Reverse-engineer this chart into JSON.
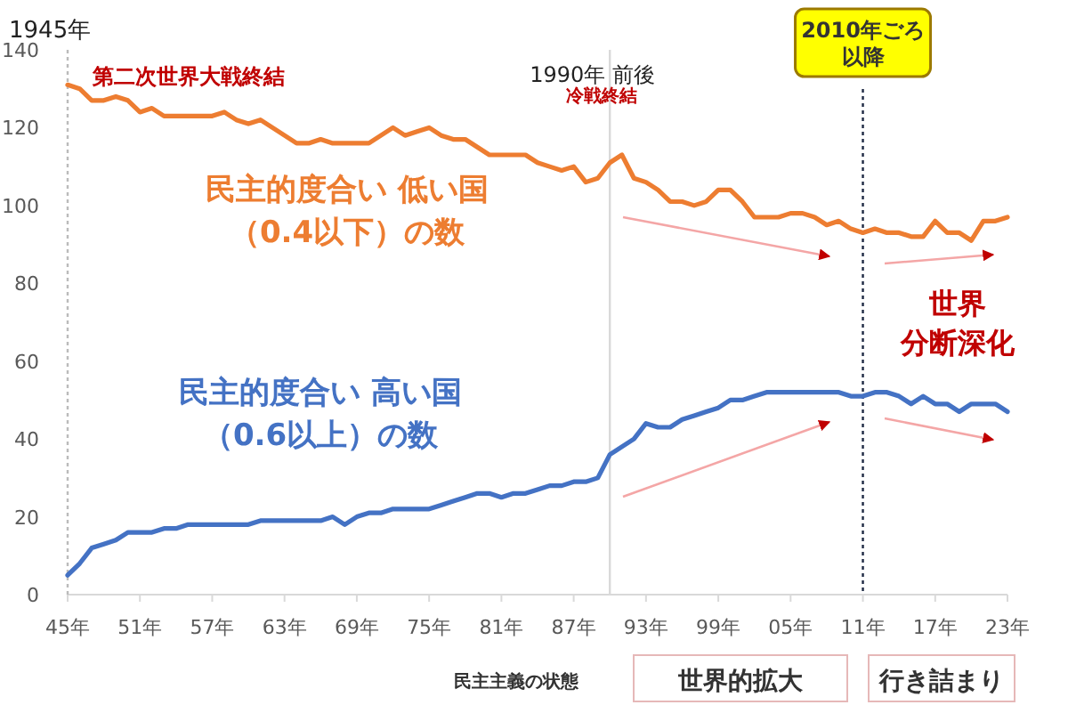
{
  "chart_data": {
    "type": "line",
    "x": [
      "1945",
      "1946",
      "1947",
      "1948",
      "1949",
      "1950",
      "1951",
      "1952",
      "1953",
      "1954",
      "1955",
      "1956",
      "1957",
      "1958",
      "1959",
      "1960",
      "1961",
      "1962",
      "1963",
      "1964",
      "1965",
      "1966",
      "1967",
      "1968",
      "1969",
      "1970",
      "1971",
      "1972",
      "1973",
      "1974",
      "1975",
      "1976",
      "1977",
      "1978",
      "1979",
      "1980",
      "1981",
      "1982",
      "1983",
      "1984",
      "1985",
      "1986",
      "1987",
      "1988",
      "1989",
      "1990",
      "1991",
      "1992",
      "1993",
      "1994",
      "1995",
      "1996",
      "1997",
      "1998",
      "1999",
      "2000",
      "2001",
      "2002",
      "2003",
      "2004",
      "2005",
      "2006",
      "2007",
      "2008",
      "2009",
      "2010",
      "2011",
      "2012",
      "2013",
      "2014",
      "2015",
      "2016",
      "2017",
      "2018",
      "2019",
      "2020",
      "2021",
      "2022",
      "2023"
    ],
    "series": [
      {
        "name": "民主的度合い 低い国（0.4以下）の数",
        "color": "#ed7d31",
        "values": [
          131,
          130,
          127,
          127,
          128,
          127,
          124,
          125,
          123,
          123,
          123,
          123,
          123,
          124,
          122,
          121,
          122,
          120,
          118,
          116,
          116,
          117,
          116,
          116,
          116,
          116,
          118,
          120,
          118,
          119,
          120,
          118,
          117,
          117,
          115,
          113,
          113,
          113,
          113,
          111,
          110,
          109,
          110,
          106,
          107,
          111,
          113,
          107,
          106,
          104,
          101,
          101,
          100,
          101,
          104,
          104,
          101,
          97,
          97,
          97,
          98,
          98,
          97,
          95,
          96,
          94,
          93,
          94,
          93,
          93,
          92,
          92,
          96,
          93,
          93,
          91,
          96,
          96,
          97
        ]
      },
      {
        "name": "民主的度合い 高い国（0.6以上）の数",
        "color": "#4472c4",
        "values": [
          5,
          8,
          12,
          13,
          14,
          16,
          16,
          16,
          17,
          17,
          18,
          18,
          18,
          18,
          18,
          18,
          19,
          19,
          19,
          19,
          19,
          19,
          20,
          18,
          20,
          21,
          21,
          22,
          22,
          22,
          22,
          23,
          24,
          25,
          26,
          26,
          25,
          26,
          26,
          27,
          28,
          28,
          29,
          29,
          30,
          36,
          38,
          40,
          44,
          43,
          43,
          45,
          46,
          47,
          48,
          50,
          50,
          51,
          52,
          52,
          52,
          52,
          52,
          52,
          52,
          51,
          51,
          52,
          52,
          51,
          49,
          51,
          49,
          49,
          47,
          49,
          49,
          49,
          47
        ]
      }
    ],
    "xlim": [
      "1945",
      "2023"
    ],
    "xticks": [
      {
        "value": "1945",
        "label": "45年"
      },
      {
        "value": "1951",
        "label": "51年"
      },
      {
        "value": "1957",
        "label": "57年"
      },
      {
        "value": "1963",
        "label": "63年"
      },
      {
        "value": "1969",
        "label": "69年"
      },
      {
        "value": "1975",
        "label": "75年"
      },
      {
        "value": "1981",
        "label": "81年"
      },
      {
        "value": "1987",
        "label": "87年"
      },
      {
        "value": "1993",
        "label": "93年"
      },
      {
        "value": "1999",
        "label": "99年"
      },
      {
        "value": "2005",
        "label": "05年"
      },
      {
        "value": "2011",
        "label": "11年"
      },
      {
        "value": "2017",
        "label": "17年"
      },
      {
        "value": "2023",
        "label": "23年"
      }
    ],
    "ylim": [
      0,
      140
    ],
    "yticks": [
      0,
      20,
      40,
      60,
      80,
      100,
      120,
      140
    ],
    "grid": false,
    "legend": false,
    "marker": "none",
    "line_style": "solid",
    "ref_lines": [
      {
        "axis": "x",
        "value": "1945",
        "label": "1945年",
        "color": "#bbbbbb",
        "line_style": "dotted"
      },
      {
        "axis": "x",
        "value": "1990",
        "label": "1990年 前後",
        "color": "#d9d9d9",
        "line_style": "solid"
      },
      {
        "axis": "x",
        "value": "2011",
        "label": "2010年ごろ以降",
        "color": "#1f2a44",
        "line_style": "dotted"
      }
    ],
    "annotations": [
      "第二次世界大戦終結",
      "冷戦終結",
      "世界",
      "分断深化",
      "民主主義の状態",
      "世界的拡大",
      "行き詰まり"
    ]
  }
}
